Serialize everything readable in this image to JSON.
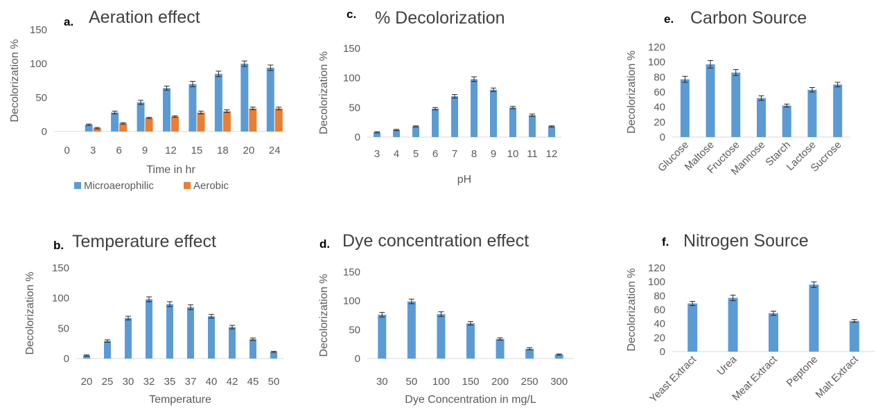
{
  "chart_data": [
    {
      "id": "a",
      "type": "bar",
      "panel_label": "a.",
      "title": "Aeration effect",
      "xlabel": "Time in hr",
      "ylabel": "Decolorization %",
      "categories": [
        "0",
        "3",
        "6",
        "9",
        "12",
        "15",
        "18",
        "20",
        "24"
      ],
      "ylim": [
        0,
        150
      ],
      "yticks": [
        0,
        50,
        100,
        150
      ],
      "grid": false,
      "error_bars": true,
      "legend_position": "bottom",
      "series": [
        {
          "name": "Microaerophilic",
          "color": "#5B9BD5",
          "values": [
            0,
            10,
            28,
            43,
            64,
            70,
            85,
            100,
            94
          ],
          "errors": [
            0,
            1,
            2,
            3,
            3,
            4,
            4,
            4,
            4
          ]
        },
        {
          "name": "Aerobic",
          "color": "#ED7D31",
          "values": [
            0,
            5,
            12,
            20,
            22,
            28,
            30,
            34,
            34
          ],
          "errors": [
            0,
            1,
            1,
            1,
            1,
            2,
            2,
            2,
            2
          ]
        }
      ]
    },
    {
      "id": "b",
      "type": "bar",
      "panel_label": "b.",
      "title": "Temperature  effect",
      "xlabel": "Temperature",
      "ylabel": "Decolorization %",
      "categories": [
        "20",
        "25",
        "30",
        "32",
        "35",
        "37",
        "40",
        "42",
        "45",
        "50"
      ],
      "ylim": [
        0,
        150
      ],
      "yticks": [
        0,
        50,
        100,
        150
      ],
      "grid": false,
      "error_bars": true,
      "series": [
        {
          "color": "#5B9BD5",
          "values": [
            5,
            29,
            67,
            98,
            90,
            85,
            70,
            52,
            32,
            11
          ],
          "errors": [
            1,
            2,
            3,
            4,
            4,
            4,
            3,
            3,
            2,
            1
          ]
        }
      ]
    },
    {
      "id": "c",
      "type": "bar",
      "panel_label": "c.",
      "title": "% Decolorization",
      "xlabel": "pH",
      "ylabel": "Decolorization %",
      "categories": [
        "3",
        "4",
        "5",
        "6",
        "7",
        "8",
        "9",
        "10",
        "11",
        "12"
      ],
      "ylim": [
        0,
        150
      ],
      "yticks": [
        0,
        50,
        100,
        150
      ],
      "grid": false,
      "error_bars": true,
      "series": [
        {
          "color": "#5B9BD5",
          "values": [
            8,
            12,
            18,
            48,
            69,
            98,
            80,
            50,
            37,
            18
          ],
          "errors": [
            1,
            1,
            1,
            2,
            3,
            4,
            3,
            2,
            2,
            1
          ]
        }
      ]
    },
    {
      "id": "d",
      "type": "bar",
      "panel_label": "d.",
      "title": "Dye concentration effect",
      "xlabel": "Dye Concentration in mg/L",
      "ylabel": "Decolorization %",
      "categories": [
        "30",
        "50",
        "100",
        "150",
        "200",
        "250",
        "300"
      ],
      "ylim": [
        0,
        150
      ],
      "yticks": [
        0,
        50,
        100,
        150
      ],
      "grid": false,
      "error_bars": true,
      "series": [
        {
          "color": "#5B9BD5",
          "values": [
            76,
            99,
            77,
            61,
            34,
            17,
            7
          ],
          "errors": [
            4,
            4,
            4,
            3,
            2,
            2,
            1
          ]
        }
      ]
    },
    {
      "id": "e",
      "type": "bar",
      "panel_label": "e.",
      "title": "Carbon Source",
      "xlabel": "",
      "ylabel": "Decolorization %",
      "categories": [
        "Glucose",
        "Maltose",
        "Fructose",
        "Mannose",
        "Starch",
        "Lactose",
        "Sucrose"
      ],
      "ylim": [
        0,
        120
      ],
      "yticks": [
        0,
        20,
        40,
        60,
        80,
        100,
        120
      ],
      "grid": false,
      "error_bars": true,
      "series": [
        {
          "color": "#5B9BD5",
          "values": [
            77,
            97,
            86,
            52,
            42,
            63,
            70
          ],
          "errors": [
            4,
            5,
            4,
            3,
            2,
            3,
            3
          ]
        }
      ]
    },
    {
      "id": "f",
      "type": "bar",
      "panel_label": "f.",
      "title": "Nitrogen Source",
      "xlabel": "",
      "ylabel": "Decolorization %",
      "categories": [
        "Yeast Extract",
        "Urea",
        "Meat Extract",
        "Peptone",
        "Malt Extract"
      ],
      "ylim": [
        0,
        120
      ],
      "yticks": [
        0,
        20,
        40,
        60,
        80,
        100,
        120
      ],
      "grid": false,
      "error_bars": true,
      "series": [
        {
          "color": "#5B9BD5",
          "values": [
            69,
            77,
            55,
            96,
            44
          ],
          "errors": [
            3,
            4,
            3,
            4,
            2
          ]
        }
      ]
    }
  ]
}
